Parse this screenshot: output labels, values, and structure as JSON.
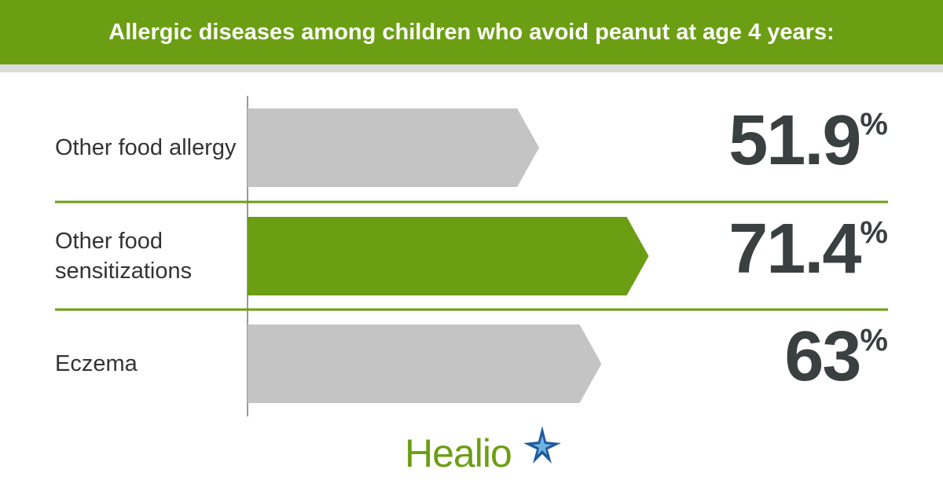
{
  "chart_data": {
    "type": "bar",
    "orientation": "horizontal",
    "title": "Allergic diseases among children who avoid peanut at age 4 years:",
    "categories": [
      "Other food allergy",
      "Other food sensitizations",
      "Eczema"
    ],
    "values": [
      51.9,
      71.4,
      63
    ],
    "value_labels": [
      "51.9%",
      "71.4%",
      "63%"
    ],
    "colors": [
      "#c4c4c4",
      "#6b9e12",
      "#c4c4c4"
    ]
  },
  "logo": "Healio"
}
